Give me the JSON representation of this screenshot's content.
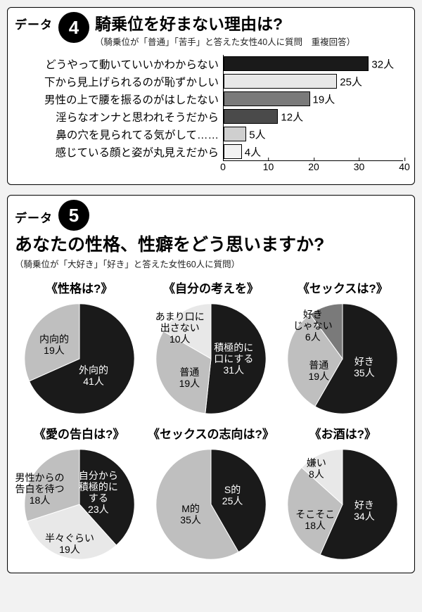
{
  "panel4": {
    "data_label": "データ",
    "number": "4",
    "title": "騎乗位を好まない理由は?",
    "subtitle": "（騎乗位が「普通」「苦手」と答えた女性40人に質問　重複回答）",
    "xmax": 40,
    "xticks": [
      0,
      10,
      20,
      30,
      40
    ],
    "unit": "人",
    "bars": [
      {
        "label": "どうやって動いていいかわからない",
        "value": 32,
        "fill": "#1a1a1a"
      },
      {
        "label": "下から見上げられるのが恥ずかしい",
        "value": 25,
        "fill": "#e8e8e8"
      },
      {
        "label": "男性の上で腰を振るのがはしたない",
        "value": 19,
        "fill": "#7a7a7a"
      },
      {
        "label": "淫らなオンナと思われそうだから",
        "value": 12,
        "fill": "#4a4a4a"
      },
      {
        "label": "鼻の穴を見られてる気がして……",
        "value": 5,
        "fill": "#cfcfcf"
      },
      {
        "label": "感じている顔と姿が丸見えだから",
        "value": 4,
        "fill": "#f2f2f2"
      }
    ]
  },
  "panel5": {
    "data_label": "データ",
    "number": "5",
    "title": "あなたの性格、性癖をどう思いますか?",
    "subtitle": "（騎乗位が「大好き」「好き」と答えた女性60人に質問）",
    "unit": "人",
    "colors": {
      "black": "#1a1a1a",
      "dark": "#7a7a7a",
      "mid": "#bfbfbf",
      "light": "#e8e8e8"
    },
    "pies": [
      {
        "title": "《性格は?》",
        "slices": [
          {
            "name": "外向的",
            "value": 41,
            "fill": "#1a1a1a",
            "text": "light",
            "lx": 62,
            "ly": 64
          },
          {
            "name": "内向的",
            "value": 19,
            "fill": "#bfbfbf",
            "text": "dark",
            "lx": 29,
            "ly": 38
          }
        ]
      },
      {
        "title": "《自分の考えを》",
        "slices": [
          {
            "name": "積極的に\n口にする",
            "value": 31,
            "fill": "#1a1a1a",
            "text": "light",
            "lx": 69,
            "ly": 50
          },
          {
            "name": "普通",
            "value": 19,
            "fill": "#bfbfbf",
            "text": "dark",
            "lx": 32,
            "ly": 66
          },
          {
            "name": "あまり口に\n出さない",
            "value": 10,
            "fill": "#e8e8e8",
            "text": "dark",
            "lx": 24,
            "ly": 24
          }
        ]
      },
      {
        "title": "《セックスは?》",
        "slices": [
          {
            "name": "好き",
            "value": 35,
            "fill": "#1a1a1a",
            "text": "light",
            "lx": 68,
            "ly": 57
          },
          {
            "name": "普通",
            "value": 19,
            "fill": "#bfbfbf",
            "text": "dark",
            "lx": 30,
            "ly": 60
          },
          {
            "name": "好き\nじゃない",
            "value": 6,
            "fill": "#7a7a7a",
            "text": "dark",
            "lx": 25,
            "ly": 22
          }
        ]
      },
      {
        "title": "《愛の告白は?》",
        "slices": [
          {
            "name": "自分から\n積極的に\nする",
            "value": 23,
            "fill": "#1a1a1a",
            "text": "light",
            "lx": 66,
            "ly": 40
          },
          {
            "name": "半々ぐらい",
            "value": 19,
            "fill": "#e8e8e8",
            "text": "dark",
            "lx": 42,
            "ly": 83
          },
          {
            "name": "男性からの\n告白を待つ",
            "value": 18,
            "fill": "#bfbfbf",
            "text": "dark",
            "lx": 17,
            "ly": 37
          }
        ]
      },
      {
        "title": "《セックスの志向は?》",
        "slices": [
          {
            "name": "S的",
            "value": 25,
            "fill": "#1a1a1a",
            "text": "light",
            "lx": 68,
            "ly": 42
          },
          {
            "name": "M的",
            "value": 35,
            "fill": "#bfbfbf",
            "text": "dark",
            "lx": 33,
            "ly": 58
          }
        ]
      },
      {
        "title": "《お酒は?》",
        "slices": [
          {
            "name": "好き",
            "value": 34,
            "fill": "#1a1a1a",
            "text": "light",
            "lx": 68,
            "ly": 55
          },
          {
            "name": "そこそこ",
            "value": 18,
            "fill": "#bfbfbf",
            "text": "dark",
            "lx": 27,
            "ly": 63
          },
          {
            "name": "嫌い",
            "value": 8,
            "fill": "#e8e8e8",
            "text": "dark",
            "lx": 28,
            "ly": 20
          }
        ]
      }
    ]
  }
}
